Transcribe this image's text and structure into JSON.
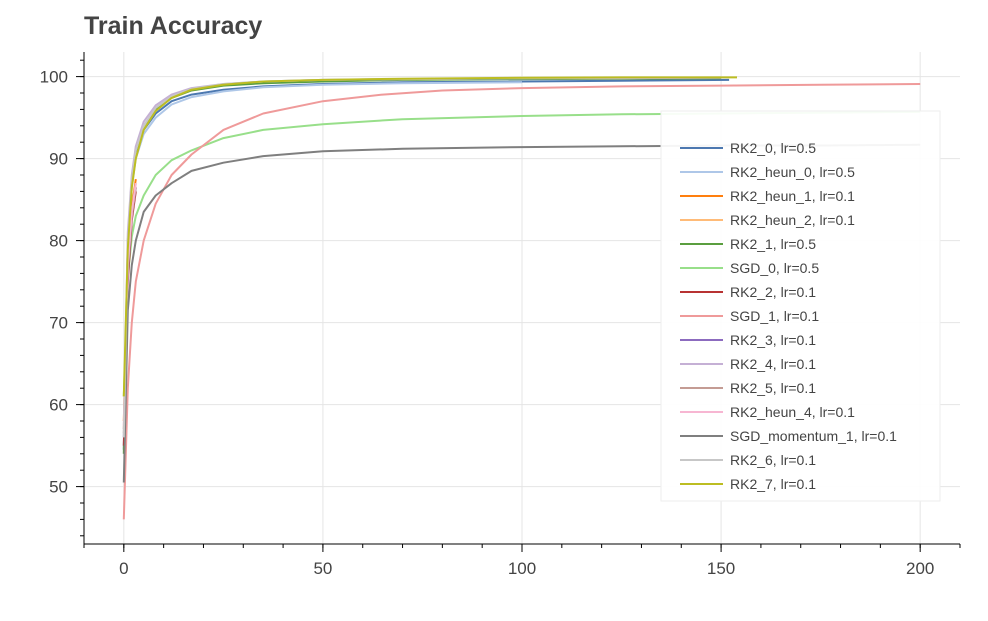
{
  "chart_data": {
    "type": "line",
    "title": "Train Accuracy",
    "xlabel": "",
    "ylabel": "",
    "xlim": [
      -10,
      210
    ],
    "ylim": [
      43,
      103
    ],
    "xticks": [
      0,
      50,
      100,
      150,
      200
    ],
    "yticks": [
      50,
      60,
      70,
      80,
      90,
      100
    ],
    "grid": true,
    "legend_position": "right",
    "series": [
      {
        "name": "RK2_0, lr=0.5",
        "color": "#4c78b0",
        "x": [
          0,
          1,
          2,
          3,
          5,
          8,
          12,
          17,
          25,
          35,
          50,
          70,
          100,
          125,
          152
        ],
        "y": [
          54.5,
          79,
          87,
          90.5,
          93.5,
          95.5,
          97,
          97.8,
          98.4,
          98.8,
          99.1,
          99.3,
          99.4,
          99.5,
          99.6
        ]
      },
      {
        "name": "RK2_heun_0, lr=0.5",
        "color": "#aec7e8",
        "x": [
          0,
          1,
          2,
          3,
          5,
          8,
          12,
          17,
          25,
          35,
          50,
          70,
          100
        ],
        "y": [
          55,
          79,
          86.5,
          90,
          93,
          95,
          96.6,
          97.5,
          98.2,
          98.7,
          99.0,
          99.2,
          99.3
        ]
      },
      {
        "name": "RK2_heun_1, lr=0.1",
        "color": "#ff7f0e",
        "x": [
          0,
          1,
          2,
          3
        ],
        "y": [
          58,
          77,
          84,
          87.5
        ]
      },
      {
        "name": "RK2_heun_2, lr=0.1",
        "color": "#ffbb78",
        "x": [
          0,
          1,
          2,
          3
        ],
        "y": [
          57,
          76,
          83,
          87
        ]
      },
      {
        "name": "RK2_1, lr=0.5",
        "color": "#5a9e3f",
        "x": [
          0,
          1,
          2,
          3,
          5,
          8,
          12,
          17,
          25,
          35,
          50,
          70,
          100,
          125,
          150
        ],
        "y": [
          54,
          80,
          87.5,
          91,
          94,
          96,
          97.4,
          98.3,
          98.9,
          99.2,
          99.4,
          99.6,
          99.7,
          99.75,
          99.8
        ]
      },
      {
        "name": "SGD_0, lr=0.5",
        "color": "#98df8a",
        "x": [
          0,
          1,
          2,
          3,
          5,
          8,
          12,
          17,
          25,
          35,
          50,
          70,
          100,
          125,
          150,
          175,
          200
        ],
        "y": [
          61,
          75.5,
          80.5,
          83,
          85.5,
          88,
          89.8,
          91,
          92.5,
          93.5,
          94.2,
          94.8,
          95.2,
          95.4,
          95.5,
          95.6,
          95.7
        ]
      },
      {
        "name": "RK2_2, lr=0.1",
        "color": "#b83232",
        "x": [
          0,
          1,
          2,
          3
        ],
        "y": [
          55,
          75,
          82.5,
          86
        ]
      },
      {
        "name": "SGD_1, lr=0.1",
        "color": "#ef9a9a",
        "x": [
          0,
          1,
          2,
          3,
          5,
          8,
          12,
          17,
          25,
          35,
          50,
          65,
          80,
          100,
          125,
          150,
          175,
          200
        ],
        "y": [
          46,
          62,
          70,
          75,
          80,
          84.5,
          88,
          90.5,
          93.5,
          95.5,
          97,
          97.8,
          98.3,
          98.6,
          98.8,
          98.9,
          99.0,
          99.1
        ]
      },
      {
        "name": "RK2_3, lr=0.1",
        "color": "#8c6bbf",
        "x": [
          0,
          1,
          2,
          3
        ],
        "y": [
          56,
          76,
          83,
          86.5
        ]
      },
      {
        "name": "RK2_4, lr=0.1",
        "color": "#c5b0d5",
        "x": [
          0,
          1,
          2,
          3,
          5,
          8,
          12,
          17,
          25,
          35,
          50,
          70,
          100,
          125,
          150
        ],
        "y": [
          57,
          81,
          88,
          91.5,
          94.5,
          96.5,
          97.8,
          98.6,
          99.1,
          99.4,
          99.6,
          99.7,
          99.8,
          99.8,
          99.85
        ]
      },
      {
        "name": "RK2_5, lr=0.1",
        "color": "#c49c94",
        "x": [
          0,
          1,
          2,
          3
        ],
        "y": [
          56.5,
          76.5,
          83,
          86.5
        ]
      },
      {
        "name": "RK2_heun_4, lr=0.1",
        "color": "#f7b6d2",
        "x": [
          0,
          1,
          2,
          3
        ],
        "y": [
          57.5,
          77,
          83.5,
          87
        ]
      },
      {
        "name": "SGD_momentum_1, lr=0.1",
        "color": "#7f7f7f",
        "x": [
          0,
          1,
          2,
          3,
          5,
          8,
          12,
          17,
          25,
          35,
          50,
          70,
          100,
          125,
          150,
          175,
          200
        ],
        "y": [
          50.5,
          71.5,
          77,
          80,
          83.5,
          85.5,
          87,
          88.5,
          89.5,
          90.3,
          90.9,
          91.2,
          91.4,
          91.5,
          91.6,
          91.6,
          91.7
        ]
      },
      {
        "name": "RK2_6, lr=0.1",
        "color": "#c7c7c7",
        "x": [
          0,
          1,
          2,
          3,
          5,
          8,
          12,
          17,
          25,
          35,
          50,
          70,
          100,
          125,
          150
        ],
        "y": [
          56,
          80,
          87.5,
          91,
          94,
          96.2,
          97.6,
          98.5,
          99.1,
          99.4,
          99.6,
          99.7,
          99.8,
          99.85,
          99.9
        ]
      },
      {
        "name": "RK2_7, lr=0.1",
        "color": "#bcbd22",
        "x": [
          0,
          1,
          2,
          3,
          5,
          8,
          12,
          17,
          25,
          35,
          50,
          70,
          100,
          125,
          150,
          154
        ],
        "y": [
          61,
          79,
          86.5,
          90,
          93.5,
          95.8,
          97.4,
          98.4,
          99.0,
          99.4,
          99.6,
          99.75,
          99.85,
          99.9,
          99.9,
          99.9
        ]
      }
    ]
  }
}
